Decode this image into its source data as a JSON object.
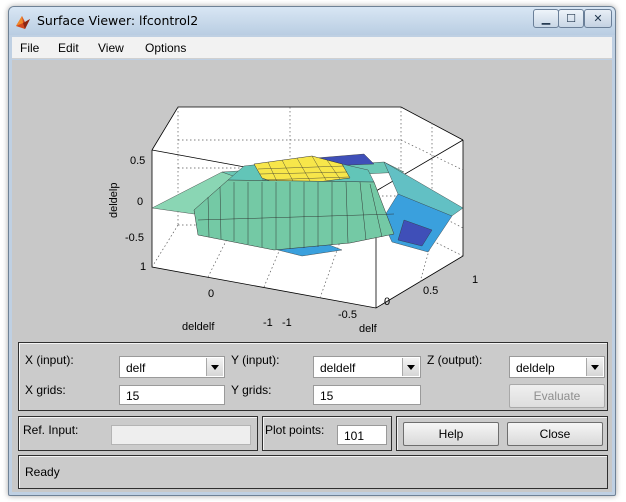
{
  "window": {
    "title": "Surface Viewer: lfcontrol2",
    "controls": {
      "minimize": "▁",
      "maximize": "☐",
      "close": "✕"
    }
  },
  "menu": [
    "File",
    "Edit",
    "View",
    "Options"
  ],
  "chart_data": {
    "type": "surface",
    "zlabel": "deldelp",
    "xlabel": "delf",
    "ylabel": "deldelf",
    "x_ticks": [
      "-1",
      "-0.5",
      "0",
      "0.5",
      "1"
    ],
    "y_ticks": [
      "-1",
      "0",
      "1"
    ],
    "z_ticks": [
      "0.5",
      "0",
      "-0.5"
    ],
    "xlim": [
      -1,
      1
    ],
    "ylim": [
      -1,
      1
    ],
    "zlim": [
      -0.75,
      0.75
    ],
    "grid": true,
    "colormap": [
      "#3f4fb8",
      "#3aa0dd",
      "#62c5b8",
      "#9fd8a8",
      "#f7e64a"
    ]
  },
  "controls": {
    "x_input_label": "X (input):",
    "x_input_value": "delf",
    "y_input_label": "Y (input):",
    "y_input_value": "deldelf",
    "z_output_label": "Z (output):",
    "z_output_value": "deldelp",
    "x_grids_label": "X grids:",
    "x_grids_value": "15",
    "y_grids_label": "Y grids:",
    "y_grids_value": "15",
    "evaluate_label": "Evaluate",
    "ref_input_label": "Ref. Input:",
    "ref_input_value": "",
    "plot_points_label": "Plot points:",
    "plot_points_value": "101",
    "help_label": "Help",
    "close_label": "Close"
  },
  "status": {
    "text": "Ready"
  }
}
